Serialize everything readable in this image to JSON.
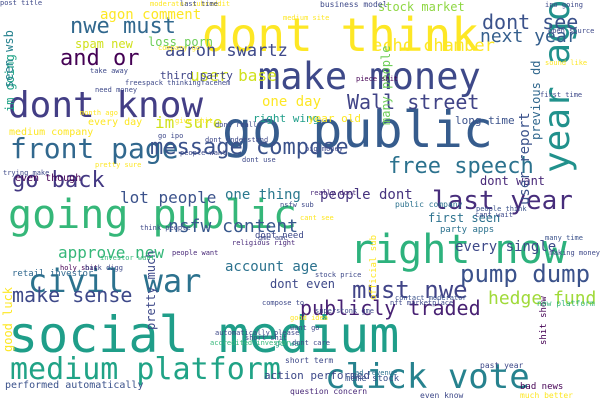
{
  "words": [
    {
      "t": "social medium",
      "c": "#1f9e89",
      "s": 50
    },
    {
      "t": "go public",
      "c": "#365c8d",
      "s": 50
    },
    {
      "t": "dont think",
      "c": "#fde725",
      "s": 46
    },
    {
      "t": "make money",
      "c": "#3e4989",
      "s": 37
    },
    {
      "t": "going public",
      "c": "#35b779",
      "s": 40
    },
    {
      "t": "right now",
      "c": "#2db27d",
      "s": 40
    },
    {
      "t": "dont know",
      "c": "#433e85",
      "s": 36
    },
    {
      "t": "year ago",
      "c": "#21918c",
      "s": 36,
      "r": -90
    },
    {
      "t": "civil war",
      "c": "#2c728e",
      "s": 32
    },
    {
      "t": "front page",
      "c": "#31688e",
      "s": 28
    },
    {
      "t": "click vote",
      "c": "#26828e",
      "s": 34
    },
    {
      "t": "medium platform",
      "c": "#20a386",
      "s": 30
    },
    {
      "t": "message compose",
      "c": "#3b528b",
      "s": 22
    },
    {
      "t": "free speech",
      "c": "#2c728e",
      "s": 22
    },
    {
      "t": "go back",
      "c": "#443983",
      "s": 22
    },
    {
      "t": "last year",
      "c": "#472d7b",
      "s": 26
    },
    {
      "t": "must nwe",
      "c": "#414487",
      "s": 24
    },
    {
      "t": "pump dump",
      "c": "#3b528b",
      "s": 24
    },
    {
      "t": "nsfw content",
      "c": "#38588c",
      "s": 18
    },
    {
      "t": "make sense",
      "c": "#3e4989",
      "s": 20
    },
    {
      "t": "publicly traded",
      "c": "#482173",
      "s": 20
    },
    {
      "t": "hedge fund",
      "c": "#a0da39",
      "s": 18
    },
    {
      "t": "nwe must",
      "c": "#31688e",
      "s": 22
    },
    {
      "t": "and or",
      "c": "#440154",
      "s": 22
    },
    {
      "t": "dont see",
      "c": "#3b528b",
      "s": 20
    },
    {
      "t": "next year",
      "c": "#355f8d",
      "s": 18
    },
    {
      "t": "echo chamber",
      "c": "#fde725",
      "s": 17
    },
    {
      "t": "aaron swartz",
      "c": "#3e4989",
      "s": 17
    },
    {
      "t": "user base",
      "c": "#d0e11c",
      "s": 16
    },
    {
      "t": "Wall street",
      "c": "#414487",
      "s": 20
    },
    {
      "t": "one day",
      "c": "#fde725",
      "s": 14
    },
    {
      "t": "im sure",
      "c": "#d0e11c",
      "s": 16
    },
    {
      "t": "lot people",
      "c": "#3b528b",
      "s": 16
    },
    {
      "t": "one thing",
      "c": "#2a788e",
      "s": 14
    },
    {
      "t": "people dont",
      "c": "#46337e",
      "s": 14
    },
    {
      "t": "approve new",
      "c": "#35b779",
      "s": 16
    },
    {
      "t": "account age",
      "c": "#2c728e",
      "s": 14
    },
    {
      "t": "dont even",
      "c": "#3e4989",
      "s": 12
    },
    {
      "t": "first seen",
      "c": "#2c728e",
      "s": 12
    },
    {
      "t": "every single",
      "c": "#3e4989",
      "s": 14
    },
    {
      "t": "dont want",
      "c": "#482878",
      "s": 12
    },
    {
      "t": "agon comment",
      "c": "#fde725",
      "s": 14
    },
    {
      "t": "spam new",
      "c": "#d0e11c",
      "s": 12
    },
    {
      "t": "loss porn",
      "c": "#6ece58",
      "s": 12
    },
    {
      "t": "stock market",
      "c": "#8fd744",
      "s": 12
    },
    {
      "t": "third party",
      "c": "#404688",
      "s": 11
    },
    {
      "t": "right wing",
      "c": "#1f9e89",
      "s": 11
    },
    {
      "t": "year old",
      "c": "#fde725",
      "s": 11
    },
    {
      "t": "long time",
      "c": "#3b528b",
      "s": 11
    },
    {
      "t": "every day",
      "c": "#fde725",
      "s": 10
    },
    {
      "t": "medium company",
      "c": "#fde725",
      "s": 10
    },
    {
      "t": "retail investor",
      "c": "#31688e",
      "s": 9
    },
    {
      "t": "even though",
      "c": "#440154",
      "s": 10
    },
    {
      "t": "good luck",
      "c": "#fde725",
      "s": 12,
      "r": -90
    },
    {
      "t": "im going",
      "c": "#20a386",
      "s": 12,
      "r": -90
    },
    {
      "t": "seen wsb",
      "c": "#26828e",
      "s": 12,
      "r": -90
    },
    {
      "t": "user report",
      "c": "#3b528b",
      "s": 14,
      "r": -90
    },
    {
      "t": "previous dd",
      "c": "#31688e",
      "s": 12,
      "r": -90
    },
    {
      "t": "many people",
      "c": "#6ece58",
      "s": 12,
      "r": -90
    },
    {
      "t": "pretty much",
      "c": "#3e4989",
      "s": 12,
      "r": -90
    },
    {
      "t": "shit show",
      "c": "#440154",
      "s": 9,
      "r": -90
    },
    {
      "t": "official sub",
      "c": "#fde725",
      "s": 9,
      "r": -90
    },
    {
      "t": "action performed",
      "c": "#3e4989",
      "s": 11
    },
    {
      "t": "performed automatically",
      "c": "#3b528b",
      "s": 10
    },
    {
      "t": "meme stock",
      "c": "#3b528b",
      "s": 9
    },
    {
      "t": "question concern",
      "c": "#482878",
      "s": 8
    },
    {
      "t": "even know",
      "c": "#3e4989",
      "s": 8
    },
    {
      "t": "bad news",
      "c": "#440154",
      "s": 9
    },
    {
      "t": "past year",
      "c": "#3e4989",
      "s": 8
    },
    {
      "t": "much better",
      "c": "#fde725",
      "s": 8
    },
    {
      "t": "short term",
      "c": "#3e4989",
      "s": 8
    },
    {
      "t": "go way",
      "c": "#20a386",
      "s": 8
    },
    {
      "t": "ad revenue",
      "c": "#2c728e",
      "s": 7
    },
    {
      "t": "nft marketplace",
      "c": "#3e4989",
      "s": 7
    },
    {
      "t": "new platform",
      "c": "#35b779",
      "s": 8
    },
    {
      "t": "contact moderator",
      "c": "#3b528b",
      "s": 7
    },
    {
      "t": "people think",
      "c": "#3b528b",
      "s": 7
    },
    {
      "t": "party apps",
      "c": "#2c728e",
      "s": 9
    },
    {
      "t": "public company",
      "c": "#2c728e",
      "s": 8
    },
    {
      "t": "many time",
      "c": "#3b528b",
      "s": 7
    },
    {
      "t": "cant see",
      "c": "#fde725",
      "s": 7
    },
    {
      "t": "dont need",
      "c": "#3e4989",
      "s": 9
    },
    {
      "t": "religious right",
      "c": "#482878",
      "s": 7
    },
    {
      "t": "investor want",
      "c": "#35b779",
      "s": 7
    },
    {
      "t": "holy shit",
      "c": "#440154",
      "s": 7
    },
    {
      "t": "back digg",
      "c": "#3e4989",
      "s": 7
    },
    {
      "t": "stock price",
      "c": "#3e4989",
      "s": 7
    },
    {
      "t": "really dont",
      "c": "#482878",
      "s": 7
    },
    {
      "t": "short shit",
      "c": "#3e4989",
      "s": 7
    },
    {
      "t": "dont care",
      "c": "#3e4989",
      "s": 7
    },
    {
      "t": "want go",
      "c": "#3e4989",
      "s": 7
    },
    {
      "t": "good idea",
      "c": "#fde725",
      "s": 7
    },
    {
      "t": "superstonk gme",
      "c": "#3e4989",
      "s": 7
    },
    {
      "t": "compose to",
      "c": "#3e4989",
      "s": 7
    },
    {
      "t": "accredited investor",
      "c": "#35b779",
      "s": 7
    },
    {
      "t": "automatically please",
      "c": "#3e4989",
      "s": 7
    },
    {
      "t": "people want",
      "c": "#482878",
      "s": 7
    },
    {
      "t": "nsfw sub",
      "c": "#3e4989",
      "s": 7
    },
    {
      "t": "dont really",
      "c": "#3e4989",
      "s": 7
    },
    {
      "t": "dont understand",
      "c": "#3e4989",
      "s": 7
    },
    {
      "t": "freespack thinkingfacehem",
      "c": "#3e4989",
      "s": 7
    },
    {
      "t": "company go",
      "c": "#fde725",
      "s": 7
    },
    {
      "t": "people want",
      "c": "#3e4989",
      "s": 7
    },
    {
      "t": "give shit",
      "c": "#fde725",
      "s": 7
    },
    {
      "t": "piece shit",
      "c": "#440154",
      "s": 7
    },
    {
      "t": "business model",
      "c": "#3e4989",
      "s": 8
    },
    {
      "t": "moderator subreddit",
      "c": "#fde725",
      "s": 7
    },
    {
      "t": "medium site",
      "c": "#fde725",
      "s": 7
    },
    {
      "t": "last time",
      "c": "#3e4989",
      "s": 7
    },
    {
      "t": "go ipo",
      "c": "#3e4989",
      "s": 7
    },
    {
      "t": "dont use",
      "c": "#3e4989",
      "s": 7
    },
    {
      "t": "gme amc",
      "c": "#3e4989",
      "s": 7
    },
    {
      "t": "open source",
      "c": "#3e4989",
      "s": 7
    },
    {
      "t": "making money",
      "c": "#3e4989",
      "s": 7
    },
    {
      "t": "cant wait",
      "c": "#3e4989",
      "s": 7
    },
    {
      "t": "think people",
      "c": "#3e4989",
      "s": 7
    },
    {
      "t": "pretty sure",
      "c": "#fde725",
      "s": 7
    },
    {
      "t": "trying make",
      "c": "#3e4989",
      "s": 7
    },
    {
      "t": "big money",
      "c": "#3e4989",
      "s": 7
    },
    {
      "t": "need money",
      "c": "#3e4989",
      "s": 7
    },
    {
      "t": "first time",
      "c": "#3e4989",
      "s": 7
    },
    {
      "t": "month ago",
      "c": "#fde725",
      "s": 7
    },
    {
      "t": "take away",
      "c": "#3e4989",
      "s": 7
    },
    {
      "t": "ipo going",
      "c": "#3e4989",
      "s": 7
    },
    {
      "t": "sound like",
      "c": "#fde725",
      "s": 7
    },
    {
      "t": "post title",
      "c": "#3e4989",
      "s": 7
    }
  ]
}
